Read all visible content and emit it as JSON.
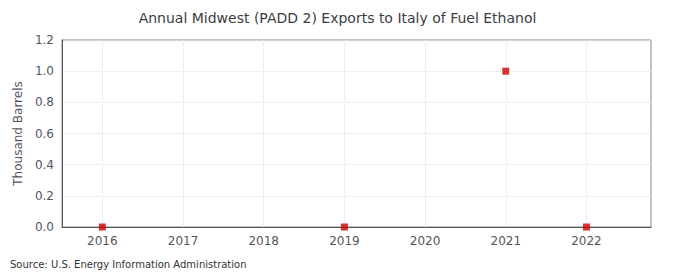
{
  "chart_data": {
    "type": "scatter",
    "title": "Annual Midwest (PADD 2) Exports to Italy of Fuel Ethanol",
    "ylabel": "Thousand Barrels",
    "annotation": "Source: U.S. Energy Information Administration",
    "x": [
      2016,
      2019,
      2021,
      2022
    ],
    "values": [
      0.0,
      0.0,
      1.0,
      0.0
    ],
    "color": "#cc0000",
    "marker": "square",
    "xlim": [
      2015.5,
      2022.8
    ],
    "xticks": [
      2016,
      2017,
      2018,
      2019,
      2020,
      2021,
      2022
    ],
    "ylim": [
      0.0,
      1.2
    ],
    "yticks": [
      {
        "value": 0.0,
        "label": "0.0"
      },
      {
        "value": 0.2,
        "label": "0.2"
      },
      {
        "value": 0.4,
        "label": "0.4"
      },
      {
        "value": 0.6,
        "label": "0.6"
      },
      {
        "value": 0.8,
        "label": "0.8"
      },
      {
        "value": 1.0,
        "label": "1.0"
      },
      {
        "value": 1.2,
        "label": "1.2"
      }
    ],
    "grid": true
  }
}
